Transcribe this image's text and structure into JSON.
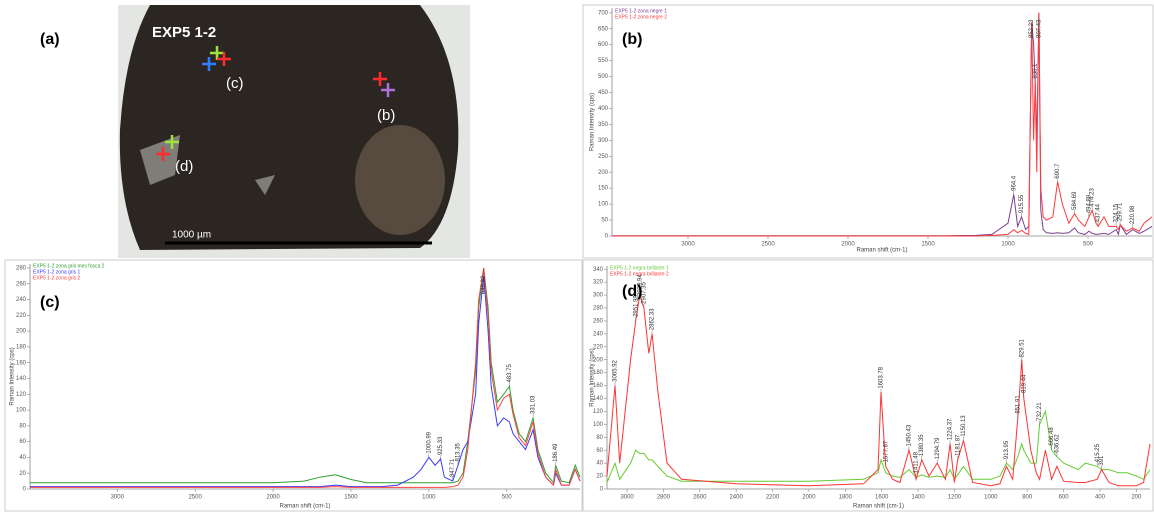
{
  "figure": {
    "label": "(a)",
    "sample": "EXP5 1-2",
    "spot_labels": [
      "(c)",
      "(b)",
      "(d)"
    ],
    "scale_bar": "1000 µm"
  },
  "chart_data": [
    {
      "type": "line",
      "label": "(b)",
      "xlabel": "Raman shift (cm-1)",
      "ylabel": "Raman Intensity (cps)",
      "xlim": [
        3475,
        100
      ],
      "xticks": [
        3000,
        2500,
        2000,
        1500,
        1000,
        500
      ],
      "ylim": [
        0,
        715
      ],
      "yticks": [
        0,
        50,
        100,
        150,
        200,
        250,
        300,
        350,
        400,
        450,
        500,
        550,
        600,
        650,
        700
      ],
      "x": [
        3475,
        3000,
        2500,
        2000,
        1600,
        1400,
        1200,
        1100,
        1000,
        964,
        940,
        915,
        890,
        870,
        852,
        840,
        830,
        820,
        807,
        795,
        780,
        760,
        720,
        690,
        660,
        620,
        584,
        560,
        520,
        494,
        474,
        450,
        437,
        400,
        370,
        324,
        310,
        299,
        260,
        220,
        180,
        150,
        100
      ],
      "series": [
        {
          "name": "EXP5 1-2 zona negre 1",
          "color": "#7b3f8c",
          "values": [
            1,
            1,
            1,
            1,
            1,
            1,
            2,
            5,
            40,
            130,
            30,
            60,
            20,
            30,
            670,
            600,
            480,
            300,
            700,
            80,
            20,
            10,
            8,
            10,
            8,
            10,
            25,
            10,
            5,
            15,
            8,
            5,
            6,
            8,
            5,
            20,
            5,
            35,
            5,
            20,
            8,
            15,
            30
          ]
        },
        {
          "name": "EXP5 1-2 zona negre 2",
          "color": "#ff3b3b",
          "values": [
            0,
            0,
            0,
            0,
            0,
            0,
            0,
            2,
            5,
            20,
            10,
            18,
            8,
            5,
            670,
            300,
            480,
            200,
            700,
            150,
            60,
            50,
            60,
            170,
            100,
            40,
            70,
            50,
            30,
            60,
            80,
            40,
            30,
            60,
            30,
            30,
            20,
            35,
            15,
            25,
            15,
            40,
            60
          ]
        }
      ],
      "peaks": [
        964.4,
        915.55,
        852.23,
        830.1,
        807.43,
        690.7,
        584.69,
        494.89,
        474.23,
        437.44,
        324.15,
        299.71,
        220.98
      ]
    },
    {
      "type": "line",
      "label": "(c)",
      "xlabel": "Raman shift (cm-1)",
      "ylabel": "Raman Intensity (cps)",
      "xlim": [
        3560,
        30
      ],
      "xticks": [
        3000,
        2500,
        2000,
        1500,
        1000,
        500
      ],
      "ylim": [
        0,
        285
      ],
      "yticks": [
        0,
        20,
        40,
        60,
        80,
        100,
        120,
        140,
        160,
        180,
        200,
        220,
        240,
        260,
        280
      ],
      "x": [
        3560,
        3000,
        2500,
        2000,
        1800,
        1700,
        1600,
        1500,
        1400,
        1300,
        1200,
        1100,
        1050,
        1000,
        960,
        925,
        900,
        847,
        813,
        780,
        750,
        700,
        680,
        648,
        620,
        600,
        560,
        520,
        483,
        460,
        420,
        380,
        331,
        300,
        250,
        200,
        186,
        150,
        100,
        60,
        30
      ],
      "series": [
        {
          "name": "EXP5 1-2 zona gris mes fosca 2",
          "color": "#2e9e2e",
          "values": [
            8,
            8,
            8,
            8,
            10,
            15,
            18,
            12,
            8,
            8,
            8,
            8,
            8,
            8,
            8,
            8,
            8,
            8,
            10,
            20,
            60,
            150,
            230,
            280,
            230,
            160,
            110,
            120,
            130,
            100,
            70,
            60,
            90,
            50,
            20,
            8,
            30,
            10,
            8,
            30,
            15
          ]
        },
        {
          "name": "EXP5 1-2 zona gris 1",
          "color": "#3a3aff",
          "values": [
            3,
            3,
            3,
            3,
            3,
            3,
            5,
            3,
            3,
            3,
            5,
            15,
            25,
            40,
            30,
            38,
            15,
            10,
            30,
            50,
            60,
            120,
            210,
            270,
            200,
            130,
            80,
            90,
            85,
            70,
            60,
            50,
            75,
            40,
            15,
            5,
            20,
            5,
            5,
            25,
            10
          ]
        },
        {
          "name": "EXP5 1-2 zona gris 2",
          "color": "#ff4040",
          "values": [
            2,
            2,
            2,
            2,
            2,
            2,
            3,
            2,
            2,
            2,
            2,
            2,
            2,
            2,
            2,
            2,
            2,
            3,
            5,
            15,
            50,
            160,
            240,
            280,
            220,
            150,
            100,
            115,
            120,
            95,
            65,
            55,
            85,
            45,
            15,
            5,
            25,
            5,
            5,
            25,
            10
          ]
        }
      ],
      "peaks": [
        1000.99,
        925.33,
        847.71,
        813.35,
        648.82,
        483.75,
        331.03,
        186.49
      ]
    },
    {
      "type": "line",
      "label": "(d)",
      "xlabel": "Raman shift (cm-1)",
      "ylabel": "Raman Intensity (cps)",
      "xlim": [
        3110,
        125
      ],
      "xticks": [
        3000,
        2800,
        2600,
        2400,
        2200,
        2000,
        1800,
        1600,
        1400,
        1200,
        1000,
        800,
        600,
        400,
        200
      ],
      "ylim": [
        0,
        345
      ],
      "yticks": [
        0,
        20,
        40,
        60,
        80,
        100,
        120,
        140,
        160,
        180,
        200,
        220,
        240,
        260,
        280,
        300,
        320,
        340
      ],
      "x": [
        3110,
        3066,
        3040,
        2980,
        2952,
        2930,
        2907,
        2880,
        2862,
        2830,
        2780,
        2700,
        2400,
        2000,
        1700,
        1620,
        1604,
        1578,
        1540,
        1500,
        1450,
        1411,
        1380,
        1340,
        1295,
        1250,
        1224,
        1200,
        1182,
        1150,
        1100,
        1000,
        950,
        914,
        880,
        852,
        830,
        819,
        780,
        750,
        732,
        700,
        666,
        637,
        600,
        520,
        480,
        415,
        391,
        350,
        300,
        250,
        200,
        160,
        125
      ],
      "series": [
        {
          "name": "EXP5 1-2 negra brillante 1",
          "color": "#66cc33",
          "values": [
            10,
            40,
            15,
            40,
            60,
            55,
            55,
            45,
            45,
            35,
            20,
            12,
            12,
            12,
            15,
            25,
            45,
            25,
            20,
            18,
            30,
            18,
            22,
            18,
            20,
            18,
            30,
            15,
            22,
            35,
            15,
            15,
            20,
            40,
            30,
            50,
            70,
            60,
            40,
            40,
            100,
            120,
            60,
            50,
            40,
            30,
            40,
            35,
            30,
            30,
            25,
            25,
            20,
            15,
            30
          ]
        },
        {
          "name": "EXP5 1-2 negra brillante 2",
          "color": "#ff3333",
          "values": [
            20,
            160,
            40,
            200,
            260,
            300,
            280,
            210,
            240,
            150,
            40,
            15,
            8,
            5,
            8,
            30,
            150,
            35,
            15,
            10,
            60,
            15,
            45,
            20,
            40,
            15,
            70,
            10,
            45,
            75,
            10,
            5,
            8,
            35,
            15,
            110,
            200,
            140,
            60,
            25,
            15,
            60,
            15,
            35,
            12,
            10,
            10,
            15,
            30,
            10,
            5,
            5,
            5,
            10,
            70
          ]
        }
      ],
      "peaks": [
        3065.92,
        2951.98,
        2929.94,
        2907.35,
        2862.33,
        1603.78,
        1577.87,
        1450.43,
        1411.48,
        1380.35,
        1294.79,
        1224.37,
        1181.87,
        1150.13,
        913.95,
        851.91,
        829.51,
        819.44,
        732.21,
        666.48,
        636.62,
        415.25,
        391.0
      ]
    }
  ]
}
